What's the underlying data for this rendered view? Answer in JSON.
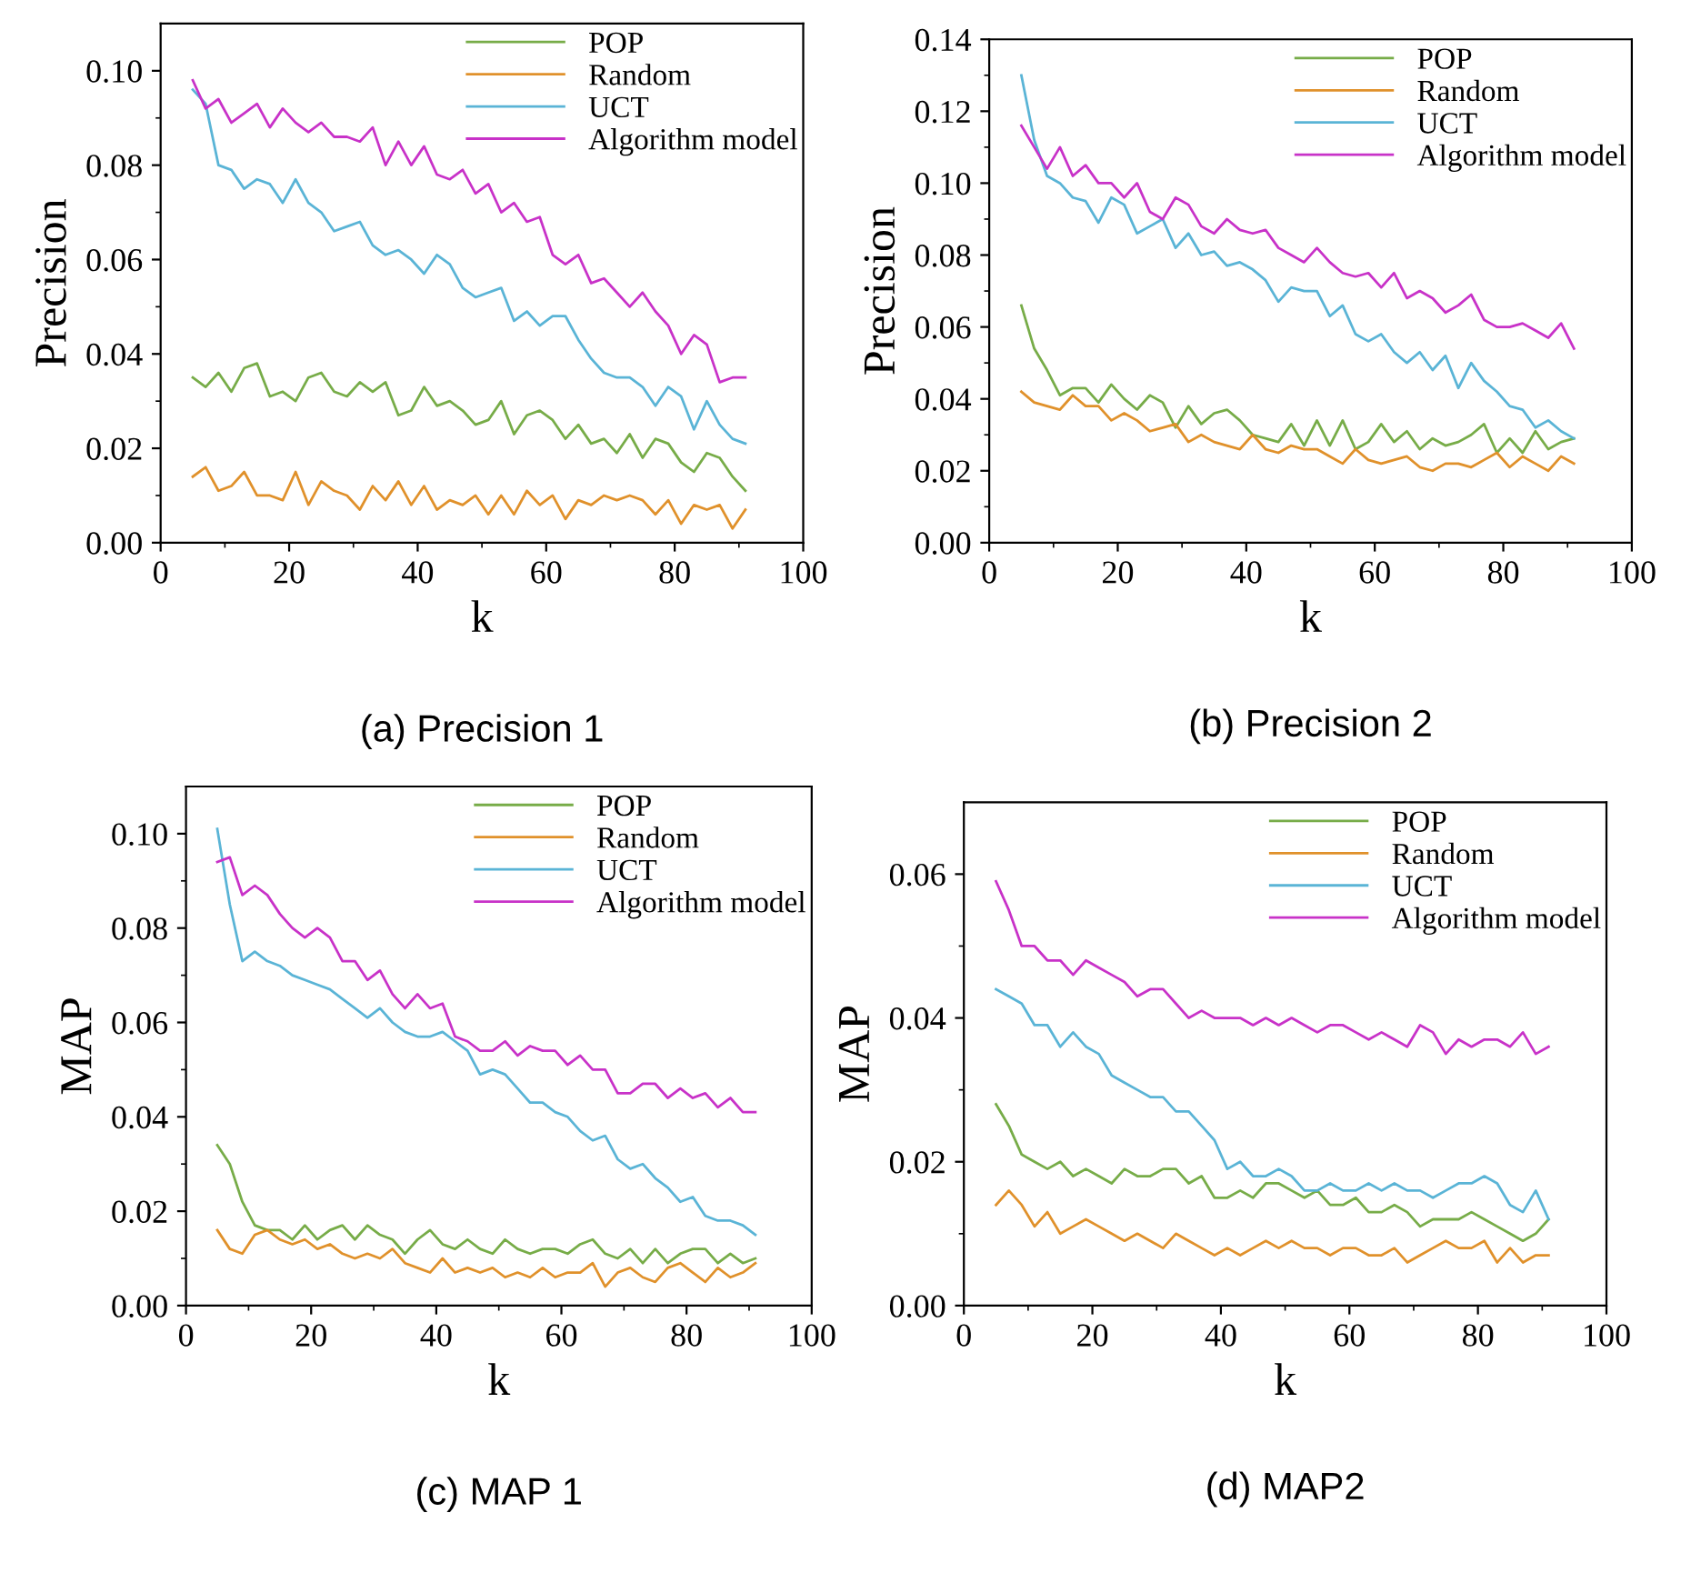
{
  "chart_data": [
    {
      "type": "line",
      "title": "(a) Precision 1",
      "xlabel": "k",
      "ylabel": "Precision",
      "legend": "top right",
      "grid": false,
      "marker": "none",
      "line_style": "solid",
      "xlim": [
        0,
        100
      ],
      "xticks": [
        0,
        20,
        40,
        60,
        80,
        100
      ],
      "ylim": [
        0,
        0.11
      ],
      "yticks": [
        {
          "value": 0,
          "label": "0.00"
        },
        {
          "value": 0.02,
          "label": "0.02"
        },
        {
          "value": 0.04,
          "label": "0.04"
        },
        {
          "value": 0.06,
          "label": "0.06"
        },
        {
          "value": 0.08,
          "label": "0.08"
        },
        {
          "value": 0.1,
          "label": "0.10"
        }
      ],
      "x": [
        5,
        7,
        9,
        11,
        13,
        15,
        17,
        19,
        21,
        23,
        25,
        27,
        29,
        31,
        33,
        35,
        37,
        39,
        41,
        43,
        45,
        47,
        49,
        51,
        53,
        55,
        57,
        59,
        61,
        63,
        65,
        67,
        69,
        71,
        73,
        75,
        77,
        79,
        81,
        83,
        85,
        87,
        89,
        91
      ],
      "series": [
        {
          "name": "POP",
          "color": "#77ac48",
          "values": [
            0.035,
            0.033,
            0.036,
            0.032,
            0.037,
            0.038,
            0.031,
            0.032,
            0.03,
            0.035,
            0.036,
            0.032,
            0.031,
            0.034,
            0.032,
            0.034,
            0.027,
            0.028,
            0.033,
            0.029,
            0.03,
            0.028,
            0.025,
            0.026,
            0.03,
            0.023,
            0.027,
            0.028,
            0.026,
            0.022,
            0.025,
            0.021,
            0.022,
            0.019,
            0.023,
            0.018,
            0.022,
            0.021,
            0.017,
            0.015,
            0.019,
            0.018,
            0.014,
            0.011
          ]
        },
        {
          "name": "Random",
          "color": "#e0912b",
          "values": [
            0.014,
            0.016,
            0.011,
            0.012,
            0.015,
            0.01,
            0.01,
            0.009,
            0.015,
            0.008,
            0.013,
            0.011,
            0.01,
            0.007,
            0.012,
            0.009,
            0.013,
            0.008,
            0.012,
            0.007,
            0.009,
            0.008,
            0.01,
            0.006,
            0.01,
            0.006,
            0.011,
            0.008,
            0.01,
            0.005,
            0.009,
            0.008,
            0.01,
            0.009,
            0.01,
            0.009,
            0.006,
            0.009,
            0.004,
            0.008,
            0.007,
            0.008,
            0.003,
            0.007
          ]
        },
        {
          "name": "UCT",
          "color": "#5ab4d6",
          "values": [
            0.096,
            0.093,
            0.08,
            0.079,
            0.075,
            0.077,
            0.076,
            0.072,
            0.077,
            0.072,
            0.07,
            0.066,
            0.067,
            0.068,
            0.063,
            0.061,
            0.062,
            0.06,
            0.057,
            0.061,
            0.059,
            0.054,
            0.052,
            0.053,
            0.054,
            0.047,
            0.049,
            0.046,
            0.048,
            0.048,
            0.043,
            0.039,
            0.036,
            0.035,
            0.035,
            0.033,
            0.029,
            0.033,
            0.031,
            0.024,
            0.03,
            0.025,
            0.022,
            0.021
          ]
        },
        {
          "name": "Algorithm model",
          "color": "#c832c8",
          "values": [
            0.098,
            0.092,
            0.094,
            0.089,
            0.091,
            0.093,
            0.088,
            0.092,
            0.089,
            0.087,
            0.089,
            0.086,
            0.086,
            0.085,
            0.088,
            0.08,
            0.085,
            0.08,
            0.084,
            0.078,
            0.077,
            0.079,
            0.074,
            0.076,
            0.07,
            0.072,
            0.068,
            0.069,
            0.061,
            0.059,
            0.061,
            0.055,
            0.056,
            0.053,
            0.05,
            0.053,
            0.049,
            0.046,
            0.04,
            0.044,
            0.042,
            0.034,
            0.035,
            0.035
          ]
        }
      ]
    },
    {
      "type": "line",
      "title": "(b) Precision 2",
      "xlabel": "k",
      "ylabel": "Precision",
      "legend": "top right",
      "grid": false,
      "marker": "none",
      "line_style": "solid",
      "xlim": [
        0,
        100
      ],
      "xticks": [
        0,
        20,
        40,
        60,
        80,
        100
      ],
      "ylim": [
        0,
        0.14
      ],
      "yticks": [
        {
          "value": 0,
          "label": "0.00"
        },
        {
          "value": 0.02,
          "label": "0.02"
        },
        {
          "value": 0.04,
          "label": "0.04"
        },
        {
          "value": 0.06,
          "label": "0.06"
        },
        {
          "value": 0.08,
          "label": "0.08"
        },
        {
          "value": 0.1,
          "label": "0.10"
        },
        {
          "value": 0.12,
          "label": "0.12"
        },
        {
          "value": 0.14,
          "label": "0.14"
        }
      ],
      "x": [
        5,
        7,
        9,
        11,
        13,
        15,
        17,
        19,
        21,
        23,
        25,
        27,
        29,
        31,
        33,
        35,
        37,
        39,
        41,
        43,
        45,
        47,
        49,
        51,
        53,
        55,
        57,
        59,
        61,
        63,
        65,
        67,
        69,
        71,
        73,
        75,
        77,
        79,
        81,
        83,
        85,
        87,
        89,
        91
      ],
      "series": [
        {
          "name": "POP",
          "color": "#77ac48",
          "values": [
            0.066,
            0.054,
            0.048,
            0.041,
            0.043,
            0.043,
            0.039,
            0.044,
            0.04,
            0.037,
            0.041,
            0.039,
            0.032,
            0.038,
            0.033,
            0.036,
            0.037,
            0.034,
            0.03,
            0.029,
            0.028,
            0.033,
            0.027,
            0.034,
            0.027,
            0.034,
            0.026,
            0.028,
            0.033,
            0.028,
            0.031,
            0.026,
            0.029,
            0.027,
            0.028,
            0.03,
            0.033,
            0.025,
            0.029,
            0.025,
            0.031,
            0.026,
            0.028,
            0.029
          ]
        },
        {
          "name": "Random",
          "color": "#e0912b",
          "values": [
            0.042,
            0.039,
            0.038,
            0.037,
            0.041,
            0.038,
            0.038,
            0.034,
            0.036,
            0.034,
            0.031,
            0.032,
            0.033,
            0.028,
            0.03,
            0.028,
            0.027,
            0.026,
            0.03,
            0.026,
            0.025,
            0.027,
            0.026,
            0.026,
            0.024,
            0.022,
            0.026,
            0.023,
            0.022,
            0.023,
            0.024,
            0.021,
            0.02,
            0.022,
            0.022,
            0.021,
            0.023,
            0.025,
            0.021,
            0.024,
            0.022,
            0.02,
            0.024,
            0.022
          ]
        },
        {
          "name": "UCT",
          "color": "#5ab4d6",
          "values": [
            0.13,
            0.112,
            0.102,
            0.1,
            0.096,
            0.095,
            0.089,
            0.096,
            0.094,
            0.086,
            0.088,
            0.09,
            0.082,
            0.086,
            0.08,
            0.081,
            0.077,
            0.078,
            0.076,
            0.073,
            0.067,
            0.071,
            0.07,
            0.07,
            0.063,
            0.066,
            0.058,
            0.056,
            0.058,
            0.053,
            0.05,
            0.053,
            0.048,
            0.052,
            0.043,
            0.05,
            0.045,
            0.042,
            0.038,
            0.037,
            0.032,
            0.034,
            0.031,
            0.029
          ]
        },
        {
          "name": "Algorithm model",
          "color": "#c832c8",
          "values": [
            0.116,
            0.11,
            0.104,
            0.11,
            0.102,
            0.105,
            0.1,
            0.1,
            0.096,
            0.1,
            0.092,
            0.09,
            0.096,
            0.094,
            0.088,
            0.086,
            0.09,
            0.087,
            0.086,
            0.087,
            0.082,
            0.08,
            0.078,
            0.082,
            0.078,
            0.075,
            0.074,
            0.075,
            0.071,
            0.075,
            0.068,
            0.07,
            0.068,
            0.064,
            0.066,
            0.069,
            0.062,
            0.06,
            0.06,
            0.061,
            0.059,
            0.057,
            0.061,
            0.054
          ]
        }
      ]
    },
    {
      "type": "line",
      "title": "(c) MAP 1",
      "xlabel": "k",
      "ylabel": "MAP",
      "legend": "top right",
      "grid": false,
      "marker": "none",
      "line_style": "solid",
      "xlim": [
        0,
        100
      ],
      "xticks": [
        0,
        20,
        40,
        60,
        80,
        100
      ],
      "ylim": [
        0,
        0.11
      ],
      "yticks": [
        {
          "value": 0,
          "label": "0.00"
        },
        {
          "value": 0.02,
          "label": "0.02"
        },
        {
          "value": 0.04,
          "label": "0.04"
        },
        {
          "value": 0.06,
          "label": "0.06"
        },
        {
          "value": 0.08,
          "label": "0.08"
        },
        {
          "value": 0.1,
          "label": "0.10"
        }
      ],
      "x": [
        5,
        7,
        9,
        11,
        13,
        15,
        17,
        19,
        21,
        23,
        25,
        27,
        29,
        31,
        33,
        35,
        37,
        39,
        41,
        43,
        45,
        47,
        49,
        51,
        53,
        55,
        57,
        59,
        61,
        63,
        65,
        67,
        69,
        71,
        73,
        75,
        77,
        79,
        81,
        83,
        85,
        87,
        89,
        91
      ],
      "series": [
        {
          "name": "POP",
          "color": "#77ac48",
          "values": [
            0.034,
            0.03,
            0.022,
            0.017,
            0.016,
            0.016,
            0.014,
            0.017,
            0.014,
            0.016,
            0.017,
            0.014,
            0.017,
            0.015,
            0.014,
            0.011,
            0.014,
            0.016,
            0.013,
            0.012,
            0.014,
            0.012,
            0.011,
            0.014,
            0.012,
            0.011,
            0.012,
            0.012,
            0.011,
            0.013,
            0.014,
            0.011,
            0.01,
            0.012,
            0.009,
            0.012,
            0.009,
            0.011,
            0.012,
            0.012,
            0.009,
            0.011,
            0.009,
            0.01
          ]
        },
        {
          "name": "Random",
          "color": "#e0912b",
          "values": [
            0.016,
            0.012,
            0.011,
            0.015,
            0.016,
            0.014,
            0.013,
            0.014,
            0.012,
            0.013,
            0.011,
            0.01,
            0.011,
            0.01,
            0.012,
            0.009,
            0.008,
            0.007,
            0.01,
            0.007,
            0.008,
            0.007,
            0.008,
            0.006,
            0.007,
            0.006,
            0.008,
            0.006,
            0.007,
            0.007,
            0.009,
            0.004,
            0.007,
            0.008,
            0.006,
            0.005,
            0.008,
            0.009,
            0.007,
            0.005,
            0.008,
            0.006,
            0.007,
            0.009
          ]
        },
        {
          "name": "UCT",
          "color": "#5ab4d6",
          "values": [
            0.101,
            0.085,
            0.073,
            0.075,
            0.073,
            0.072,
            0.07,
            0.069,
            0.068,
            0.067,
            0.065,
            0.063,
            0.061,
            0.063,
            0.06,
            0.058,
            0.057,
            0.057,
            0.058,
            0.056,
            0.054,
            0.049,
            0.05,
            0.049,
            0.046,
            0.043,
            0.043,
            0.041,
            0.04,
            0.037,
            0.035,
            0.036,
            0.031,
            0.029,
            0.03,
            0.027,
            0.025,
            0.022,
            0.023,
            0.019,
            0.018,
            0.018,
            0.017,
            0.015
          ]
        },
        {
          "name": "Algorithm model",
          "color": "#c832c8",
          "values": [
            0.094,
            0.095,
            0.087,
            0.089,
            0.087,
            0.083,
            0.08,
            0.078,
            0.08,
            0.078,
            0.073,
            0.073,
            0.069,
            0.071,
            0.066,
            0.063,
            0.066,
            0.063,
            0.064,
            0.057,
            0.056,
            0.054,
            0.054,
            0.056,
            0.053,
            0.055,
            0.054,
            0.054,
            0.051,
            0.053,
            0.05,
            0.05,
            0.045,
            0.045,
            0.047,
            0.047,
            0.044,
            0.046,
            0.044,
            0.045,
            0.042,
            0.044,
            0.041,
            0.041
          ]
        }
      ]
    },
    {
      "type": "line",
      "title": "(d) MAP2",
      "xlabel": "k",
      "ylabel": "MAP",
      "legend": "top right",
      "grid": false,
      "marker": "none",
      "line_style": "solid",
      "xlim": [
        0,
        100
      ],
      "xticks": [
        0,
        20,
        40,
        60,
        80,
        100
      ],
      "ylim": [
        0,
        0.07
      ],
      "yticks": [
        {
          "value": 0,
          "label": "0.00"
        },
        {
          "value": 0.02,
          "label": "0.02"
        },
        {
          "value": 0.04,
          "label": "0.04"
        },
        {
          "value": 0.06,
          "label": "0.06"
        }
      ],
      "x": [
        5,
        7,
        9,
        11,
        13,
        15,
        17,
        19,
        21,
        23,
        25,
        27,
        29,
        31,
        33,
        35,
        37,
        39,
        41,
        43,
        45,
        47,
        49,
        51,
        53,
        55,
        57,
        59,
        61,
        63,
        65,
        67,
        69,
        71,
        73,
        75,
        77,
        79,
        81,
        83,
        85,
        87,
        89,
        91
      ],
      "series": [
        {
          "name": "POP",
          "color": "#77ac48",
          "values": [
            0.028,
            0.025,
            0.021,
            0.02,
            0.019,
            0.02,
            0.018,
            0.019,
            0.018,
            0.017,
            0.019,
            0.018,
            0.018,
            0.019,
            0.019,
            0.017,
            0.018,
            0.015,
            0.015,
            0.016,
            0.015,
            0.017,
            0.017,
            0.016,
            0.015,
            0.016,
            0.014,
            0.014,
            0.015,
            0.013,
            0.013,
            0.014,
            0.013,
            0.011,
            0.012,
            0.012,
            0.012,
            0.013,
            0.012,
            0.011,
            0.01,
            0.009,
            0.01,
            0.012
          ]
        },
        {
          "name": "Random",
          "color": "#e0912b",
          "values": [
            0.014,
            0.016,
            0.014,
            0.011,
            0.013,
            0.01,
            0.011,
            0.012,
            0.011,
            0.01,
            0.009,
            0.01,
            0.009,
            0.008,
            0.01,
            0.009,
            0.008,
            0.007,
            0.008,
            0.007,
            0.008,
            0.009,
            0.008,
            0.009,
            0.008,
            0.008,
            0.007,
            0.008,
            0.008,
            0.007,
            0.007,
            0.008,
            0.006,
            0.007,
            0.008,
            0.009,
            0.008,
            0.008,
            0.009,
            0.006,
            0.008,
            0.006,
            0.007,
            0.007
          ]
        },
        {
          "name": "UCT",
          "color": "#5ab4d6",
          "values": [
            0.044,
            0.043,
            0.042,
            0.039,
            0.039,
            0.036,
            0.038,
            0.036,
            0.035,
            0.032,
            0.031,
            0.03,
            0.029,
            0.029,
            0.027,
            0.027,
            0.025,
            0.023,
            0.019,
            0.02,
            0.018,
            0.018,
            0.019,
            0.018,
            0.016,
            0.016,
            0.017,
            0.016,
            0.016,
            0.017,
            0.016,
            0.017,
            0.016,
            0.016,
            0.015,
            0.016,
            0.017,
            0.017,
            0.018,
            0.017,
            0.014,
            0.013,
            0.016,
            0.012
          ]
        },
        {
          "name": "Algorithm model",
          "color": "#c832c8",
          "values": [
            0.059,
            0.055,
            0.05,
            0.05,
            0.048,
            0.048,
            0.046,
            0.048,
            0.047,
            0.046,
            0.045,
            0.043,
            0.044,
            0.044,
            0.042,
            0.04,
            0.041,
            0.04,
            0.04,
            0.04,
            0.039,
            0.04,
            0.039,
            0.04,
            0.039,
            0.038,
            0.039,
            0.039,
            0.038,
            0.037,
            0.038,
            0.037,
            0.036,
            0.039,
            0.038,
            0.035,
            0.037,
            0.036,
            0.037,
            0.037,
            0.036,
            0.038,
            0.035,
            0.036
          ]
        }
      ]
    }
  ]
}
